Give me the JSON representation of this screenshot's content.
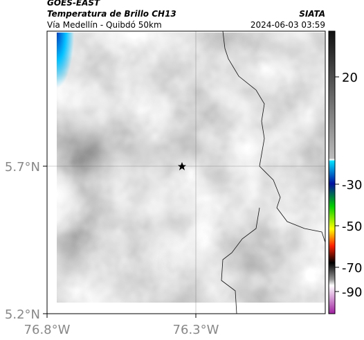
{
  "header": {
    "satellite": "GOES-EAST",
    "product": "Temperatura de Brillo CH13",
    "route": "Vía Medellín - Quibdó 50km",
    "agency": "SIATA",
    "timestamp": "2024-06-03 03:59"
  },
  "axes": {
    "lat_labels": [
      "5.7°N",
      "5.2°N"
    ],
    "lon_labels": [
      "76.8°W",
      "76.3°W"
    ]
  },
  "colorbar": {
    "labels": [
      "20",
      "-30",
      "-50",
      "-70",
      "-90"
    ]
  }
}
